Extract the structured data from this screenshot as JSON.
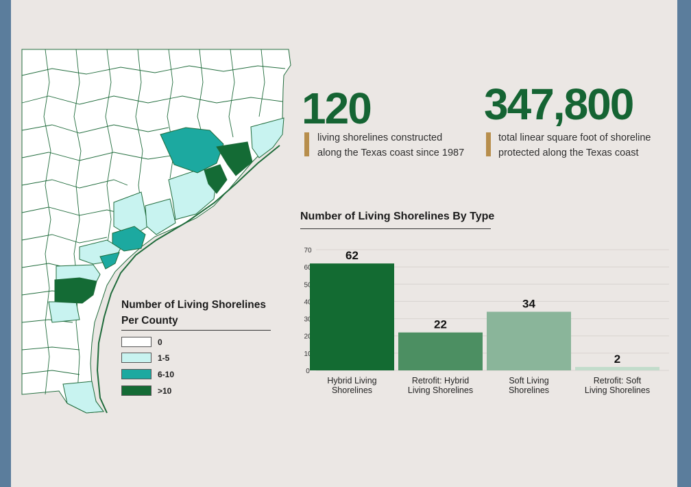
{
  "stats": [
    {
      "value": "120",
      "caption_line1": "living shorelines constructed",
      "caption_line2": "along the Texas coast since 1987"
    },
    {
      "value": "347,800",
      "caption_line1": "total linear square foot of shoreline",
      "caption_line2": "protected along the Texas coast"
    }
  ],
  "map": {
    "legend_title_line1": "Number of Living Shorelines",
    "legend_title_line2": "Per County",
    "legend": [
      {
        "label": "0",
        "color": "#ffffff"
      },
      {
        "label": "1-5",
        "color": "#c8f3f0"
      },
      {
        "label": "6-10",
        "color": "#1ca9a0"
      },
      {
        "label": ">10",
        "color": "#146b35"
      }
    ]
  },
  "chart_data": {
    "type": "bar",
    "title": "Number of Living Shorelines By Type",
    "categories": [
      [
        "Hybrid Living",
        "Shorelines"
      ],
      [
        "Retrofit: Hybrid",
        "Living Shorelines"
      ],
      [
        "Soft Living",
        "Shorelines"
      ],
      [
        "Retrofit: Soft",
        "Living Shorelines"
      ]
    ],
    "values": [
      62,
      22,
      34,
      2
    ],
    "colors": [
      "#136b32",
      "#4c8f62",
      "#8ab59a",
      "#c2dccb"
    ],
    "ylim": [
      0,
      70
    ],
    "yticks": [
      0,
      10,
      20,
      30,
      40,
      50,
      60,
      70
    ],
    "grid": true
  }
}
